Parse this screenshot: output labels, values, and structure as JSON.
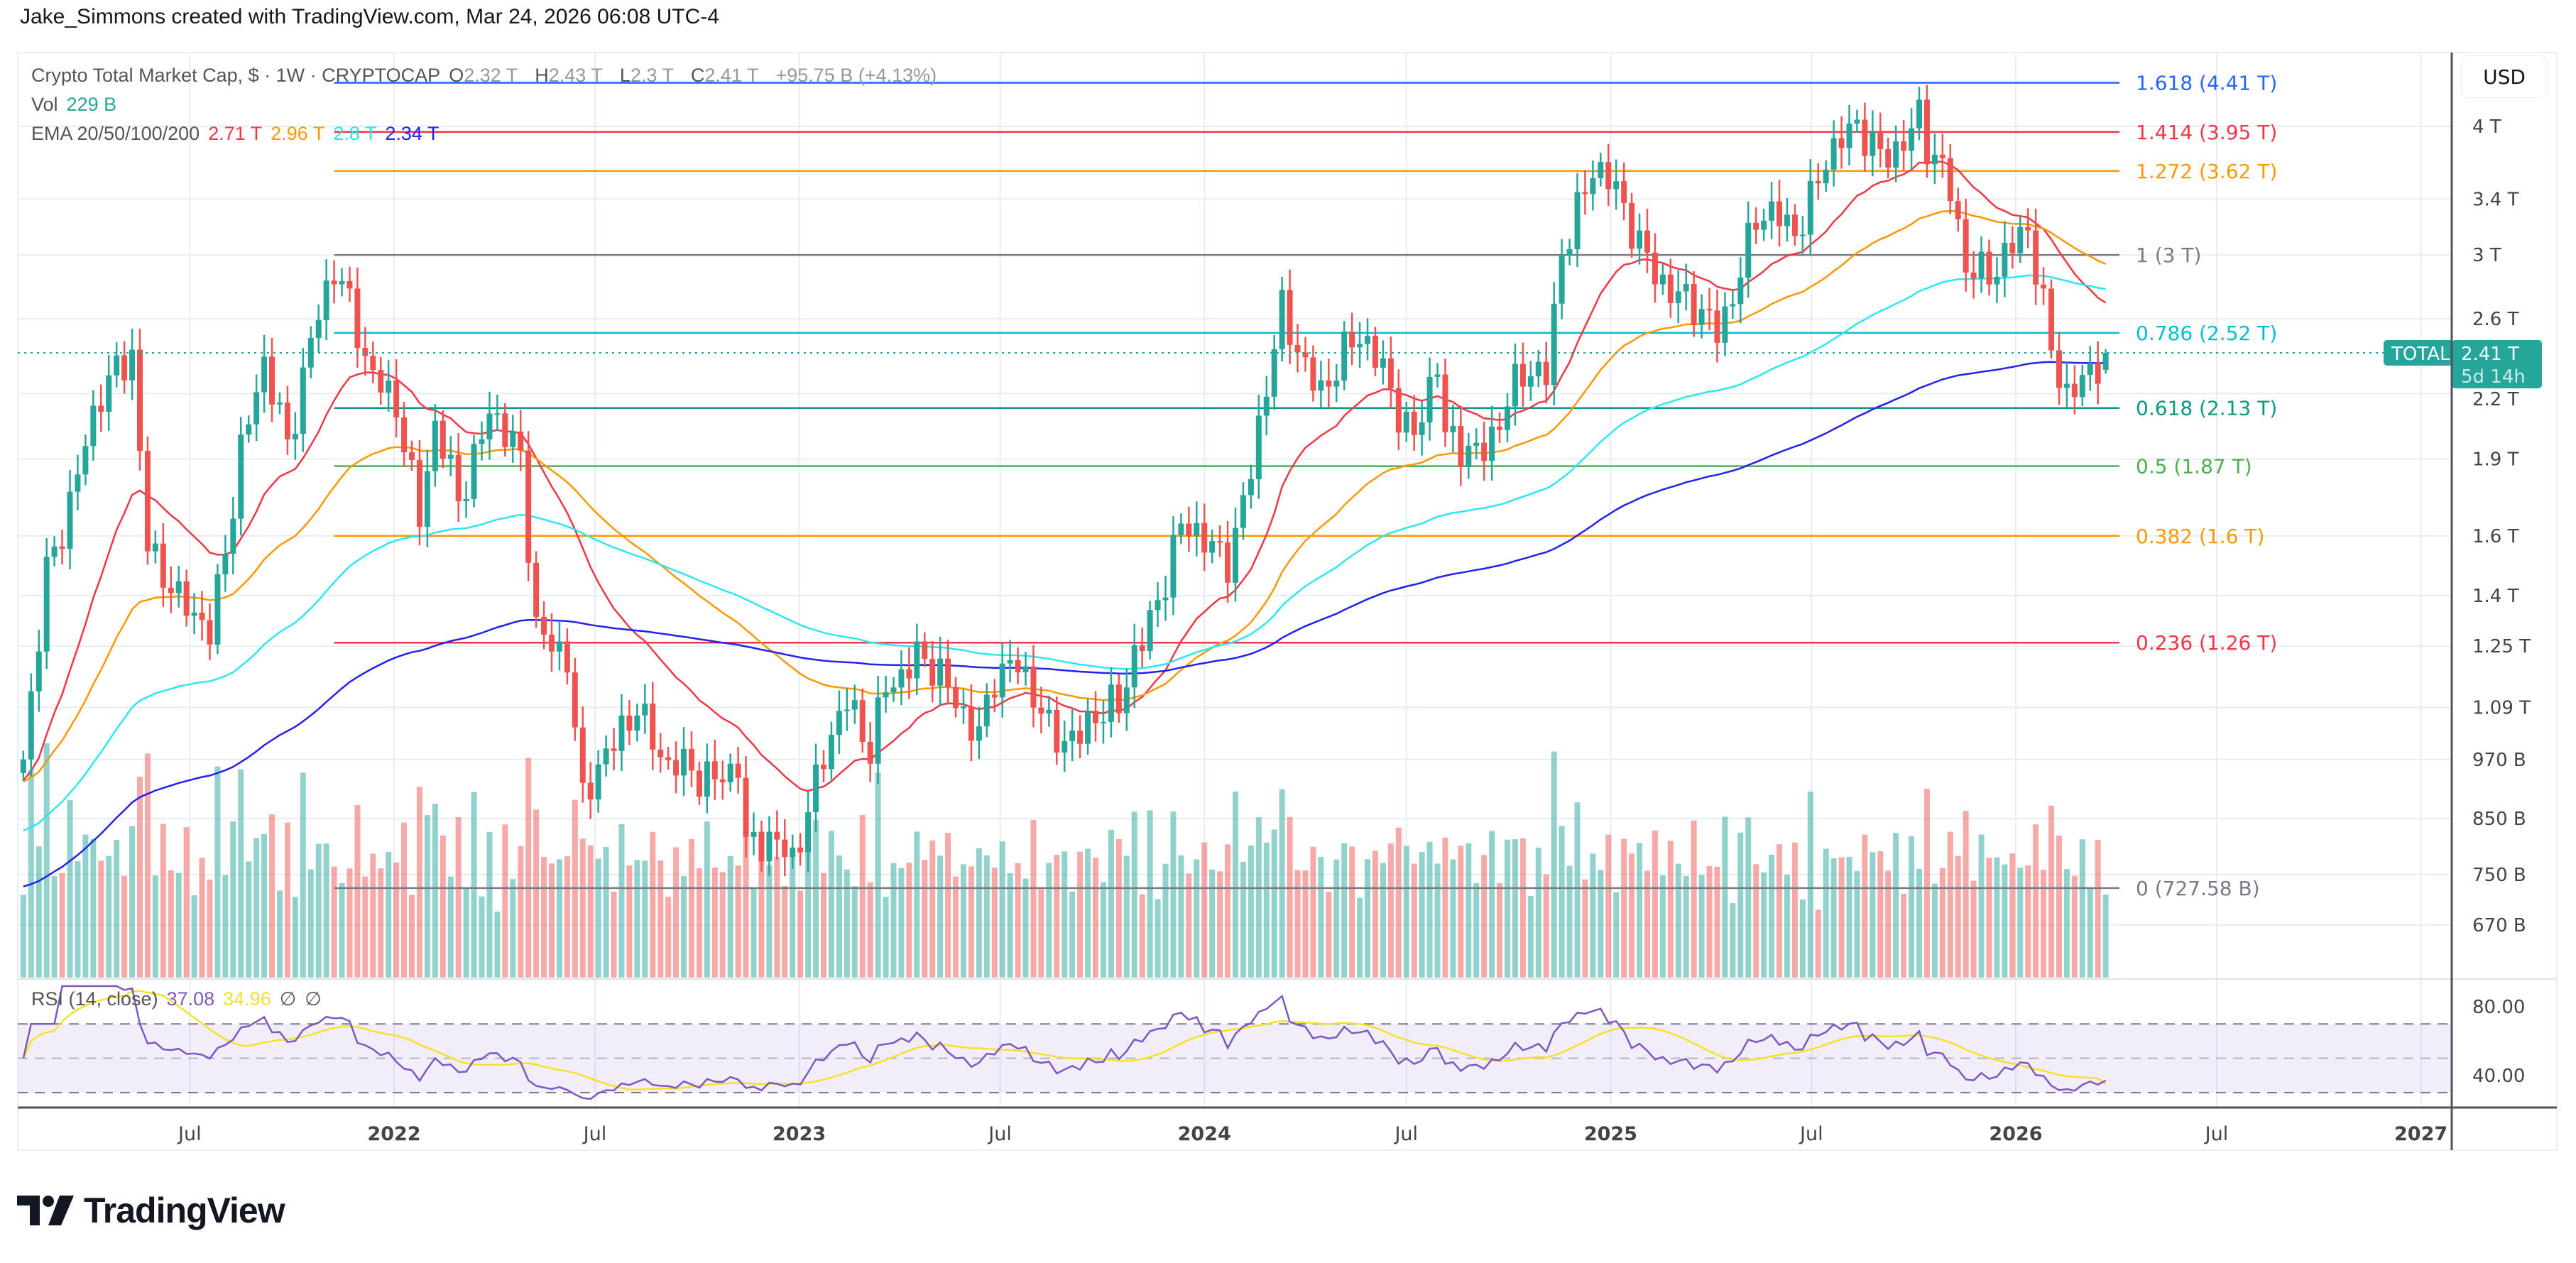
{
  "header": {
    "credit": "Jake_Simmons created with TradingView.com, Mar 24, 2026 06:08 UTC-4"
  },
  "legend": {
    "symbol": "Crypto Total Market Cap, $ · 1W · CRYPTOCAP",
    "o_label": "O",
    "o": "2.32 T",
    "h_label": "H",
    "h": "2.43 T",
    "l_label": "L",
    "l": "2.3 T",
    "c_label": "C",
    "c": "2.41 T",
    "change": "+95.75 B (+4.13%)",
    "vol_label": "Vol",
    "vol": "229 B",
    "ema_label": "EMA 20/50/100/200",
    "ema_values": [
      "2.71 T",
      "2.96 T",
      "2.8 T",
      "2.34 T"
    ],
    "rsi_label": "RSI (14, close)",
    "rsi": "37.08",
    "rsi_ma": "34.96",
    "rsi_extra1": "∅",
    "rsi_extra2": "∅"
  },
  "axis": {
    "currency": "USD",
    "symbol_tag": "TOTAL",
    "last_price": "2.41 T",
    "countdown": "5d 14h"
  },
  "logo": {
    "text": "TradingView"
  },
  "colors": {
    "up": "#26a69a",
    "down": "#ef5350",
    "ema": [
      "#f23645",
      "#ff9800",
      "#2ee6f0",
      "#2222ee"
    ],
    "rsi": "#7e57c2",
    "rsi_ma": "#f5e12a",
    "price_line": "#26a69a"
  },
  "chart_data": {
    "type": "candlestick",
    "interval": "1W",
    "scale": "log",
    "grid": true,
    "y_ticks": [
      {
        "label": "4 T",
        "value": 4.0
      },
      {
        "label": "3.4 T",
        "value": 3.4
      },
      {
        "label": "3 T",
        "value": 3.0
      },
      {
        "label": "2.6 T",
        "value": 2.6
      },
      {
        "label": "2.2 T",
        "value": 2.2
      },
      {
        "label": "1.9 T",
        "value": 1.9
      },
      {
        "label": "1.6 T",
        "value": 1.6
      },
      {
        "label": "1.4 T",
        "value": 1.4
      },
      {
        "label": "1.25 T",
        "value": 1.25
      },
      {
        "label": "1.09 T",
        "value": 1.09
      },
      {
        "label": "970 B",
        "value": 0.97
      },
      {
        "label": "850 B",
        "value": 0.85
      },
      {
        "label": "750 B",
        "value": 0.75
      },
      {
        "label": "670 B",
        "value": 0.67
      }
    ],
    "x_ticks": [
      {
        "label": "Jul",
        "date": "2021-07-01"
      },
      {
        "label": "2022",
        "date": "2022-01-01",
        "year": true
      },
      {
        "label": "Jul",
        "date": "2022-07-01"
      },
      {
        "label": "2023",
        "date": "2023-01-01",
        "year": true
      },
      {
        "label": "Jul",
        "date": "2023-07-01"
      },
      {
        "label": "2024",
        "date": "2024-01-01",
        "year": true
      },
      {
        "label": "Jul",
        "date": "2024-07-01"
      },
      {
        "label": "2025",
        "date": "2025-01-01",
        "year": true
      },
      {
        "label": "Jul",
        "date": "2025-07-01"
      },
      {
        "label": "2026",
        "date": "2026-01-01",
        "year": true
      },
      {
        "label": "Jul",
        "date": "2026-07-01"
      },
      {
        "label": "2027",
        "date": "2027-01-01",
        "year": true
      }
    ],
    "fib_levels": [
      {
        "ratio": "1.618",
        "label": "1.618 (4.41 T)",
        "value": 4.41,
        "color": "#2962ff"
      },
      {
        "ratio": "1.414",
        "label": "1.414 (3.95 T)",
        "value": 3.95,
        "color": "#f23645"
      },
      {
        "ratio": "1.272",
        "label": "1.272 (3.62 T)",
        "value": 3.62,
        "color": "#ff9800"
      },
      {
        "ratio": "1",
        "label": "1 (3 T)",
        "value": 3.0,
        "color": "#787b86"
      },
      {
        "ratio": "0.786",
        "label": "0.786 (2.52 T)",
        "value": 2.52,
        "color": "#00bcd4"
      },
      {
        "ratio": "0.618",
        "label": "0.618 (2.13 T)",
        "value": 2.13,
        "color": "#089981"
      },
      {
        "ratio": "0.5",
        "label": "0.5 (1.87 T)",
        "value": 1.87,
        "color": "#4caf50"
      },
      {
        "ratio": "0.382",
        "label": "0.382 (1.6 T)",
        "value": 1.6,
        "color": "#ff9800"
      },
      {
        "ratio": "0.236",
        "label": "0.236 (1.26 T)",
        "value": 1.26,
        "color": "#f23645"
      },
      {
        "ratio": "0",
        "label": "0 (727.58 B)",
        "value": 0.72758,
        "color": "#787b86"
      }
    ],
    "fib_start_date": "2021-11-08",
    "approx_close_path_T": [
      [
        "2021-02-01",
        0.95
      ],
      [
        "2021-02-22",
        1.5
      ],
      [
        "2021-03-15",
        1.75
      ],
      [
        "2021-04-12",
        2.15
      ],
      [
        "2021-05-10",
        2.45
      ],
      [
        "2021-05-24",
        1.6
      ],
      [
        "2021-06-21",
        1.35
      ],
      [
        "2021-07-19",
        1.3
      ],
      [
        "2021-08-16",
        1.95
      ],
      [
        "2021-09-06",
        2.3
      ],
      [
        "2021-09-27",
        1.95
      ],
      [
        "2021-10-18",
        2.55
      ],
      [
        "2021-11-08",
        2.9
      ],
      [
        "2021-12-06",
        2.35
      ],
      [
        "2022-01-03",
        2.2
      ],
      [
        "2022-01-24",
        1.65
      ],
      [
        "2022-02-07",
        2.0
      ],
      [
        "2022-02-28",
        1.75
      ],
      [
        "2022-03-28",
        2.15
      ],
      [
        "2022-04-25",
        1.85
      ],
      [
        "2022-05-09",
        1.3
      ],
      [
        "2022-06-06",
        1.25
      ],
      [
        "2022-06-20",
        0.88
      ],
      [
        "2022-07-18",
        0.99
      ],
      [
        "2022-08-08",
        1.12
      ],
      [
        "2022-09-05",
        0.95
      ],
      [
        "2022-10-03",
        0.92
      ],
      [
        "2022-11-07",
        0.98
      ],
      [
        "2022-11-14",
        0.8
      ],
      [
        "2022-12-26",
        0.78
      ],
      [
        "2023-01-23",
        1.0
      ],
      [
        "2023-02-13",
        1.08
      ],
      [
        "2023-03-06",
        0.98
      ],
      [
        "2023-03-20",
        1.17
      ],
      [
        "2023-04-17",
        1.22
      ],
      [
        "2023-05-15",
        1.12
      ],
      [
        "2023-06-12",
        1.05
      ],
      [
        "2023-06-26",
        1.18
      ],
      [
        "2023-07-17",
        1.17
      ],
      [
        "2023-08-14",
        1.05
      ],
      [
        "2023-09-11",
        1.03
      ],
      [
        "2023-10-16",
        1.08
      ],
      [
        "2023-10-30",
        1.25
      ],
      [
        "2023-11-20",
        1.4
      ],
      [
        "2023-12-11",
        1.6
      ],
      [
        "2024-01-22",
        1.55
      ],
      [
        "2024-02-12",
        1.85
      ],
      [
        "2024-03-11",
        2.6
      ],
      [
        "2024-04-15",
        2.25
      ],
      [
        "2024-05-20",
        2.45
      ],
      [
        "2024-06-10",
        2.35
      ],
      [
        "2024-07-08",
        2.0
      ],
      [
        "2024-07-29",
        2.3
      ],
      [
        "2024-08-05",
        1.95
      ],
      [
        "2024-09-09",
        1.98
      ],
      [
        "2024-10-14",
        2.25
      ],
      [
        "2024-11-04",
        2.3
      ],
      [
        "2024-11-18",
        3.1
      ],
      [
        "2024-12-16",
        3.6
      ],
      [
        "2025-01-06",
        3.4
      ],
      [
        "2025-02-03",
        3.05
      ],
      [
        "2025-02-24",
        2.75
      ],
      [
        "2025-03-10",
        2.65
      ],
      [
        "2025-04-07",
        2.55
      ],
      [
        "2025-05-12",
        3.25
      ],
      [
        "2025-06-16",
        3.15
      ],
      [
        "2025-07-14",
        3.8
      ],
      [
        "2025-08-11",
        3.9
      ],
      [
        "2025-09-01",
        3.75
      ],
      [
        "2025-10-06",
        4.1
      ],
      [
        "2025-10-13",
        3.8
      ],
      [
        "2025-11-03",
        3.4
      ],
      [
        "2025-11-17",
        2.95
      ],
      [
        "2025-12-15",
        2.95
      ],
      [
        "2026-01-12",
        3.1
      ],
      [
        "2026-02-02",
        2.45
      ],
      [
        "2026-02-16",
        2.25
      ],
      [
        "2026-03-16",
        2.32
      ]
    ],
    "last_candle": {
      "date": "2026-03-23",
      "open": 2.32,
      "high": 2.43,
      "low": 2.3,
      "close": 2.41,
      "volume_B": 229
    },
    "ema_periods": [
      20,
      50,
      100,
      200
    ],
    "rsi": {
      "period": 14,
      "ticks": [
        {
          "label": "80.00",
          "value": 80
        },
        {
          "label": "40.00",
          "value": 40
        }
      ],
      "band": [
        30,
        70
      ],
      "mid": 50,
      "last": 37.08,
      "last_ma": 34.96
    }
  }
}
